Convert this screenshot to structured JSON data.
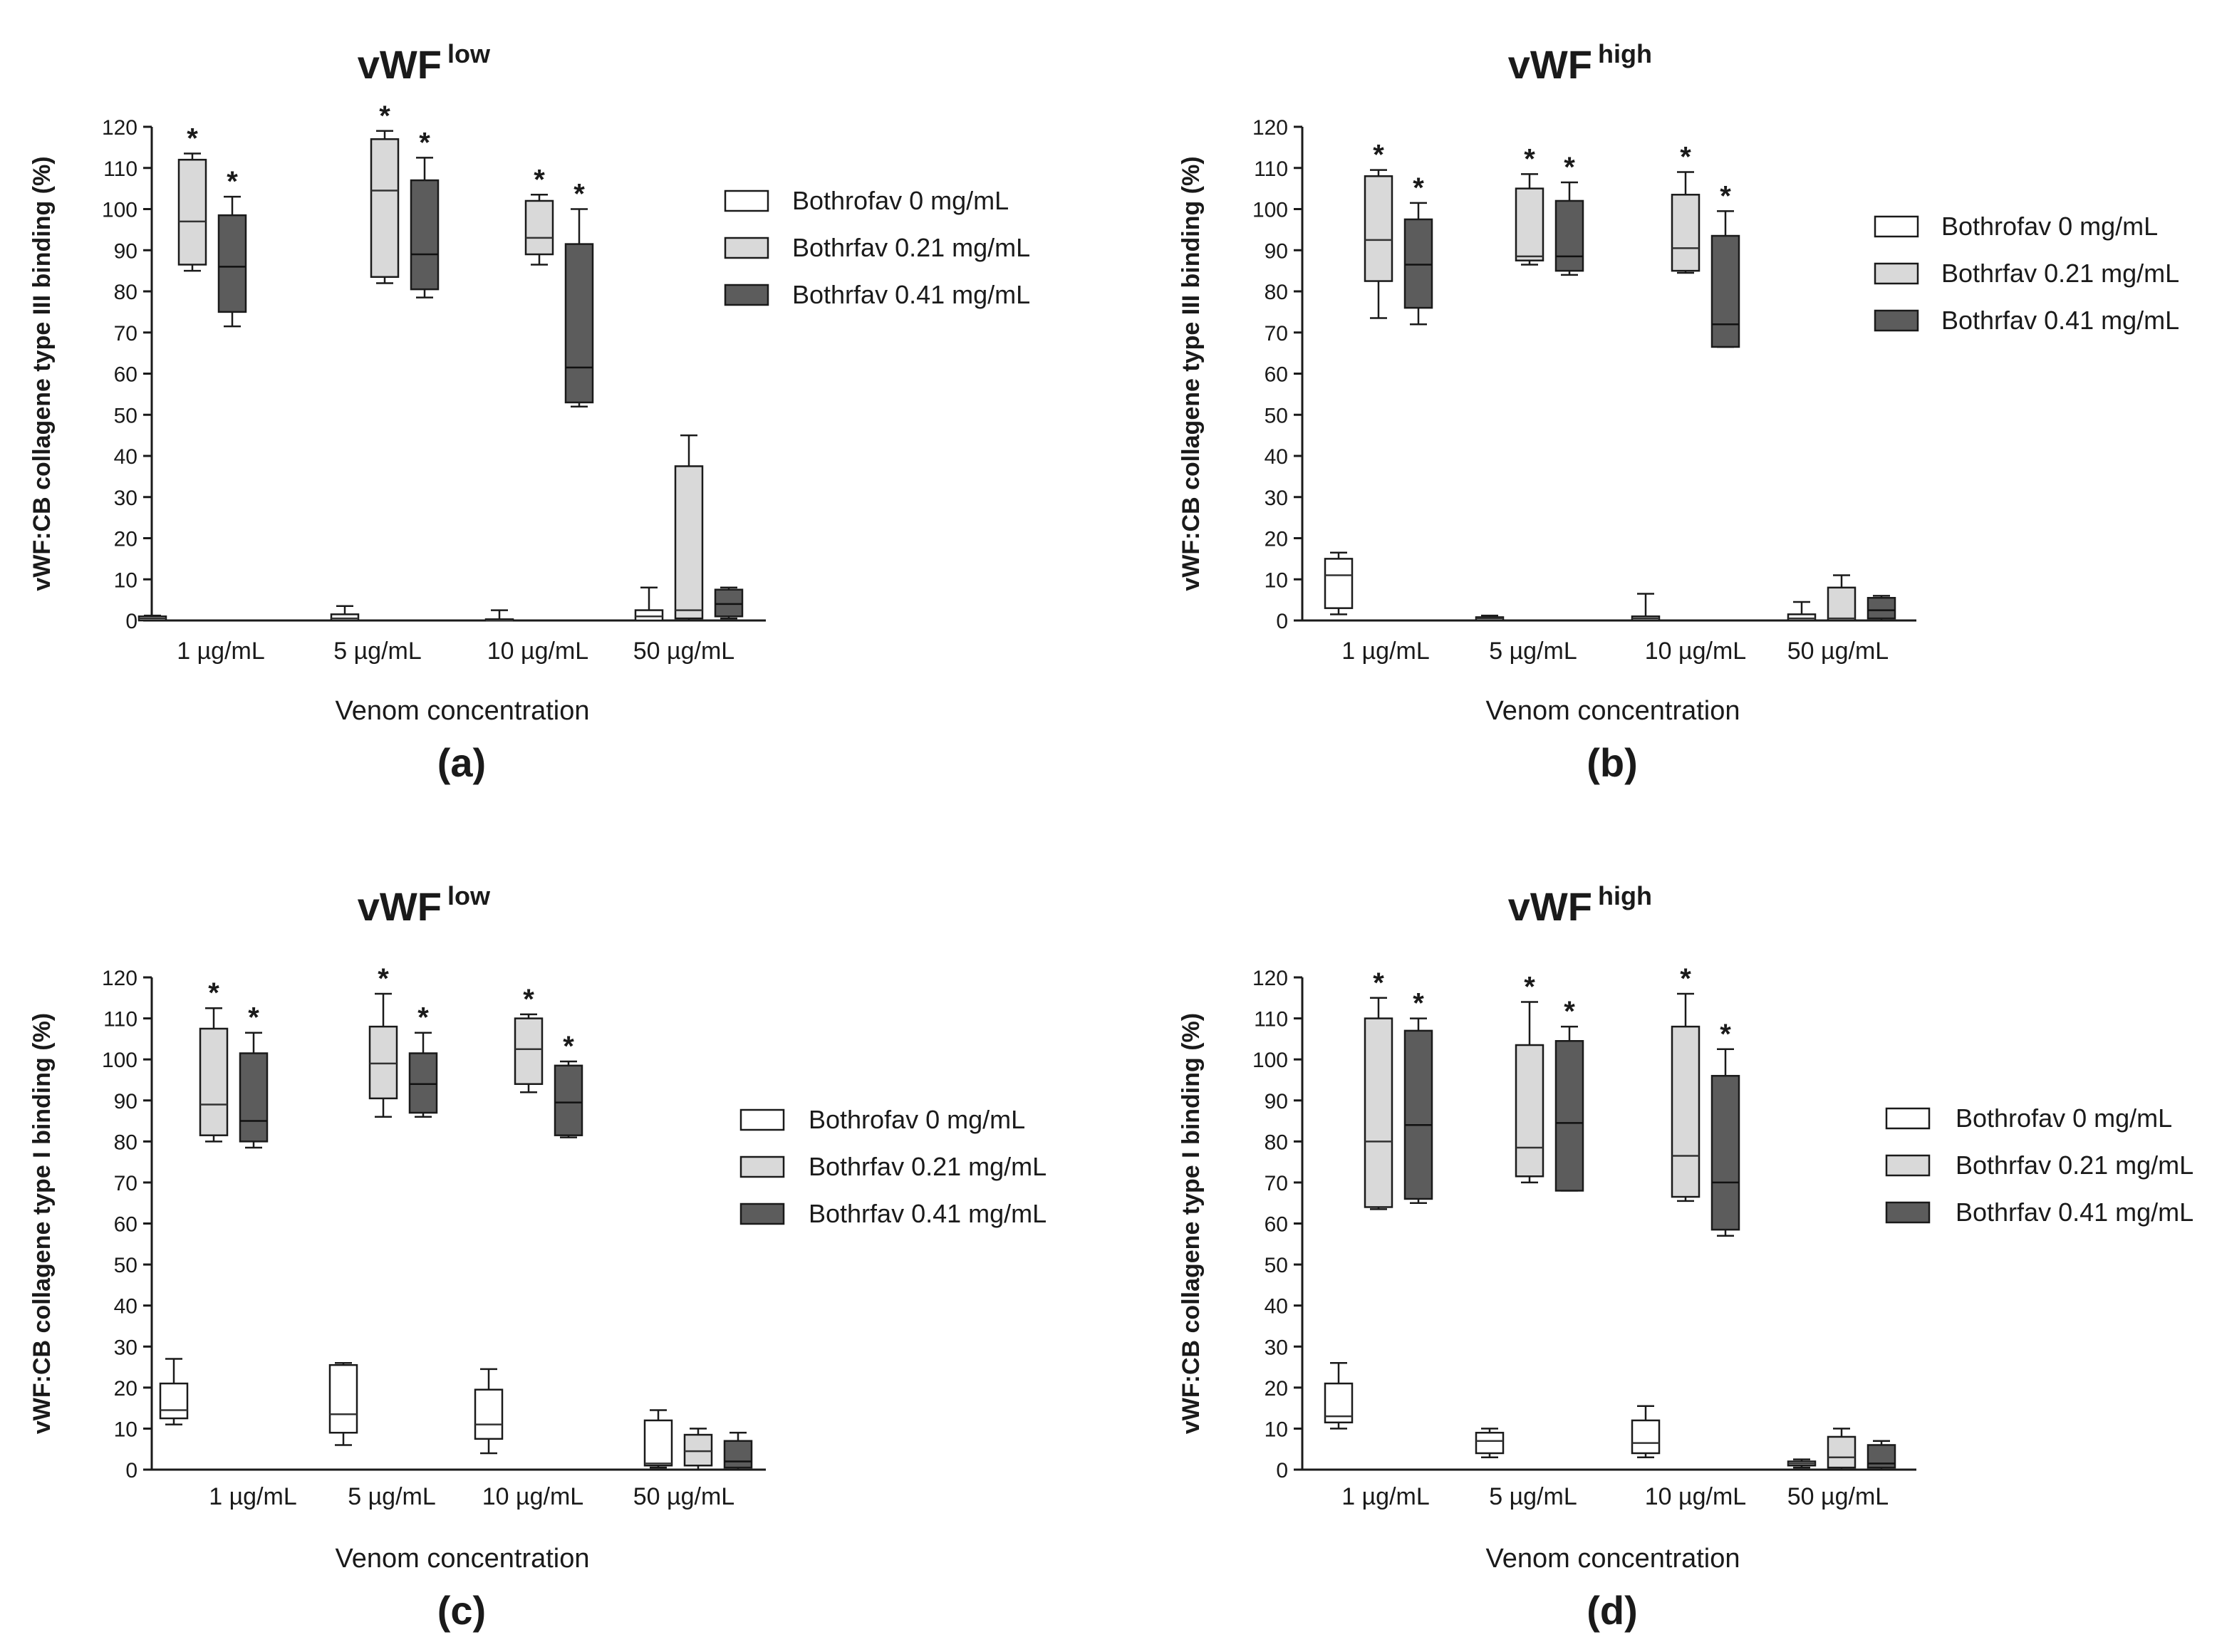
{
  "chart_data": [
    {
      "type": "box",
      "panel_label": "(a)",
      "title": "vWF",
      "title_superscript": "low",
      "ylabel": "vWF:CB collagene type III  binding (%)",
      "xlabel": "Venom concentration",
      "ylim": [
        0,
        120
      ],
      "yticks": [
        0,
        10,
        20,
        30,
        40,
        50,
        60,
        70,
        80,
        90,
        100,
        110,
        120
      ],
      "categories": [
        "1 µg/mL",
        "5 µg/mL",
        "10 µg/mL",
        "50 µg/mL"
      ],
      "legend": [
        "Bothrofav 0 mg/mL",
        "Bothrfav 0.21 mg/mL",
        "Bothrfav 0.41 mg/mL"
      ],
      "series": [
        {
          "name": "Bothrofav 0 mg/mL",
          "color": "#ffffff",
          "boxes": [
            {
              "min": 0,
              "q1": 0,
              "median": 0.5,
              "q3": 1,
              "max": 1.2,
              "star": false
            },
            {
              "min": 0,
              "q1": 0,
              "median": 0.5,
              "q3": 1.5,
              "max": 3.5,
              "star": false
            },
            {
              "min": 0,
              "q1": 0,
              "median": 0,
              "q3": 0.3,
              "max": 2.5,
              "star": false
            },
            {
              "min": 0,
              "q1": 0,
              "median": 1,
              "q3": 2.5,
              "max": 8,
              "star": false
            }
          ]
        },
        {
          "name": "Bothrfav 0.21 mg/mL",
          "color": "#d9d9d9",
          "boxes": [
            {
              "min": 85,
              "q1": 86.5,
              "median": 97,
              "q3": 112,
              "max": 113.5,
              "star": true
            },
            {
              "min": 82,
              "q1": 83.5,
              "median": 104.5,
              "q3": 117,
              "max": 119,
              "star": true
            },
            {
              "min": 86.5,
              "q1": 89,
              "median": 93,
              "q3": 102,
              "max": 103.5,
              "star": true
            },
            {
              "min": 0,
              "q1": 0.5,
              "median": 2.5,
              "q3": 37.5,
              "max": 45,
              "star": false
            }
          ]
        },
        {
          "name": "Bothrfav 0.41 mg/mL",
          "color": "#5c5c5c",
          "boxes": [
            {
              "min": 71.5,
              "q1": 75,
              "median": 86,
              "q3": 98.5,
              "max": 103,
              "star": true
            },
            {
              "min": 78.5,
              "q1": 80.5,
              "median": 89,
              "q3": 107,
              "max": 112.5,
              "star": true
            },
            {
              "min": 52,
              "q1": 53,
              "median": 61.5,
              "q3": 91.5,
              "max": 100,
              "star": true
            },
            {
              "min": 0.5,
              "q1": 1,
              "median": 4,
              "q3": 7.5,
              "max": 8,
              "star": false
            }
          ]
        }
      ]
    },
    {
      "type": "box",
      "panel_label": "(b)",
      "title": "vWF",
      "title_superscript": "high",
      "ylabel": "vWF:CB collagene type III  binding (%)",
      "xlabel": "Venom concentration",
      "ylim": [
        0,
        120
      ],
      "yticks": [
        0,
        10,
        20,
        30,
        40,
        50,
        60,
        70,
        80,
        90,
        100,
        110,
        120
      ],
      "categories": [
        "1 µg/mL",
        "5 µg/mL",
        "10 µg/mL",
        "50 µg/mL"
      ],
      "legend": [
        "Bothrofav 0 mg/mL",
        "Bothrfav 0.21 mg/mL",
        "Bothrfav 0.41 mg/mL"
      ],
      "series": [
        {
          "name": "Bothrofav 0 mg/mL",
          "color": "#ffffff",
          "boxes": [
            {
              "min": 1.5,
              "q1": 3,
              "median": 11,
              "q3": 15,
              "max": 16.5,
              "star": false
            },
            {
              "min": 0,
              "q1": 0,
              "median": 0.5,
              "q3": 0.8,
              "max": 1.2,
              "star": false
            },
            {
              "min": 0,
              "q1": 0,
              "median": 0.5,
              "q3": 1,
              "max": 6.5,
              "star": false
            },
            {
              "min": 0,
              "q1": 0,
              "median": 0.5,
              "q3": 1.5,
              "max": 4.5,
              "star": false
            }
          ]
        },
        {
          "name": "Bothrfav 0.21 mg/mL",
          "color": "#d9d9d9",
          "boxes": [
            {
              "min": 73.5,
              "q1": 82.5,
              "median": 92.5,
              "q3": 108,
              "max": 109.5,
              "star": true
            },
            {
              "min": 86.5,
              "q1": 87.5,
              "median": 88.5,
              "q3": 105,
              "max": 108.5,
              "star": true
            },
            {
              "min": 84.5,
              "q1": 85,
              "median": 90.5,
              "q3": 103.5,
              "max": 109,
              "star": true
            },
            {
              "min": 0,
              "q1": 0,
              "median": 0.5,
              "q3": 8,
              "max": 11,
              "star": false
            }
          ]
        },
        {
          "name": "Bothrfav 0.41 mg/mL",
          "color": "#5c5c5c",
          "boxes": [
            {
              "min": 72,
              "q1": 76,
              "median": 86.5,
              "q3": 97.5,
              "max": 101.5,
              "star": true
            },
            {
              "min": 84,
              "q1": 85,
              "median": 88.5,
              "q3": 102,
              "max": 106.5,
              "star": true
            },
            {
              "min": 66.5,
              "q1": 66.5,
              "median": 72,
              "q3": 93.5,
              "max": 99.5,
              "star": true
            },
            {
              "min": 0,
              "q1": 0.5,
              "median": 2.5,
              "q3": 5.5,
              "max": 6,
              "star": false
            }
          ]
        }
      ]
    },
    {
      "type": "box",
      "panel_label": "(c)",
      "title": "vWF",
      "title_superscript": "low",
      "ylabel": "vWF:CB collagene type I  binding (%)",
      "xlabel": "Venom concentration",
      "ylim": [
        0,
        120
      ],
      "yticks": [
        0,
        10,
        20,
        30,
        40,
        50,
        60,
        70,
        80,
        90,
        100,
        110,
        120
      ],
      "categories": [
        "1 µg/mL",
        "5 µg/mL",
        "10 µg/mL",
        "50 µg/mL"
      ],
      "legend": [
        "Bothrofav 0 mg/mL",
        "Bothrfav 0.21 mg/mL",
        "Bothrfav 0.41 mg/mL"
      ],
      "series": [
        {
          "name": "Bothrofav 0 mg/mL",
          "color": "#ffffff",
          "boxes": [
            {
              "min": 11,
              "q1": 12.5,
              "median": 14.5,
              "q3": 21,
              "max": 27,
              "star": false
            },
            {
              "min": 6,
              "q1": 9,
              "median": 13.5,
              "q3": 25.5,
              "max": 26,
              "star": false
            },
            {
              "min": 4,
              "q1": 7.5,
              "median": 11,
              "q3": 19.5,
              "max": 24.5,
              "star": false
            },
            {
              "min": 0.5,
              "q1": 1,
              "median": 1.5,
              "q3": 12,
              "max": 14.5,
              "star": false
            }
          ]
        },
        {
          "name": "Bothrfav 0.21 mg/mL",
          "color": "#d9d9d9",
          "boxes": [
            {
              "min": 80,
              "q1": 81.5,
              "median": 89,
              "q3": 107.5,
              "max": 112.5,
              "star": true
            },
            {
              "min": 86,
              "q1": 90.5,
              "median": 99,
              "q3": 108,
              "max": 116,
              "star": true
            },
            {
              "min": 92,
              "q1": 94,
              "median": 102.5,
              "q3": 110,
              "max": 111,
              "star": true
            },
            {
              "min": 0,
              "q1": 1,
              "median": 4.5,
              "q3": 8.5,
              "max": 10,
              "star": false
            }
          ]
        },
        {
          "name": "Bothrfav 0.41 mg/mL",
          "color": "#5c5c5c",
          "boxes": [
            {
              "min": 78.5,
              "q1": 80,
              "median": 85,
              "q3": 101.5,
              "max": 106.5,
              "star": true
            },
            {
              "min": 86,
              "q1": 87,
              "median": 94,
              "q3": 101.5,
              "max": 106.5,
              "star": true
            },
            {
              "min": 81,
              "q1": 81.5,
              "median": 89.5,
              "q3": 98.5,
              "max": 99.5,
              "star": true
            },
            {
              "min": 0,
              "q1": 0.5,
              "median": 2,
              "q3": 7,
              "max": 9,
              "star": false
            }
          ]
        }
      ]
    },
    {
      "type": "box",
      "panel_label": "(d)",
      "title": "vWF",
      "title_superscript": "high",
      "ylabel": "vWF:CB collagene type I  binding (%)",
      "xlabel": "Venom concentration",
      "ylim": [
        0,
        120
      ],
      "yticks": [
        0,
        10,
        20,
        30,
        40,
        50,
        60,
        70,
        80,
        90,
        100,
        110,
        120
      ],
      "categories": [
        "1 µg/mL",
        "5 µg/mL",
        "10 µg/mL",
        "50 µg/mL"
      ],
      "legend": [
        "Bothrofav 0 mg/mL",
        "Bothrfav 0.21 mg/mL",
        "Bothrfav 0.41 mg/mL"
      ],
      "series": [
        {
          "name": "Bothrofav 0 mg/mL",
          "color": "#ffffff",
          "boxes": [
            {
              "min": 10,
              "q1": 11.5,
              "median": 13,
              "q3": 21,
              "max": 26,
              "star": false
            },
            {
              "min": 3,
              "q1": 4,
              "median": 7,
              "q3": 9,
              "max": 10,
              "star": false
            },
            {
              "min": 3,
              "q1": 4,
              "median": 6.5,
              "q3": 12,
              "max": 15.5,
              "star": false
            },
            {
              "min": 0.5,
              "q1": 1,
              "median": 1.5,
              "q3": 2,
              "max": 2.5,
              "star": false
            }
          ]
        },
        {
          "name": "Bothrfav 0.21 mg/mL",
          "color": "#d9d9d9",
          "boxes": [
            {
              "min": 63.5,
              "q1": 64,
              "median": 80,
              "q3": 110,
              "max": 115,
              "star": true
            },
            {
              "min": 70,
              "q1": 71.5,
              "median": 78.5,
              "q3": 103.5,
              "max": 114,
              "star": true
            },
            {
              "min": 65.5,
              "q1": 66.5,
              "median": 76.5,
              "q3": 108,
              "max": 116,
              "star": true
            },
            {
              "min": 0,
              "q1": 0.5,
              "median": 3,
              "q3": 8,
              "max": 10,
              "star": false
            }
          ]
        },
        {
          "name": "Bothrfav 0.41 mg/mL",
          "color": "#5c5c5c",
          "boxes": [
            {
              "min": 65,
              "q1": 66,
              "median": 84,
              "q3": 107,
              "max": 110,
              "star": true
            },
            {
              "min": 68,
              "q1": 68,
              "median": 84.5,
              "q3": 104.5,
              "max": 108,
              "star": true
            },
            {
              "min": 57,
              "q1": 58.5,
              "median": 70,
              "q3": 96,
              "max": 102.5,
              "star": true
            },
            {
              "min": 0,
              "q1": 0.5,
              "median": 1.5,
              "q3": 6,
              "max": 7,
              "star": false
            }
          ]
        }
      ]
    }
  ]
}
